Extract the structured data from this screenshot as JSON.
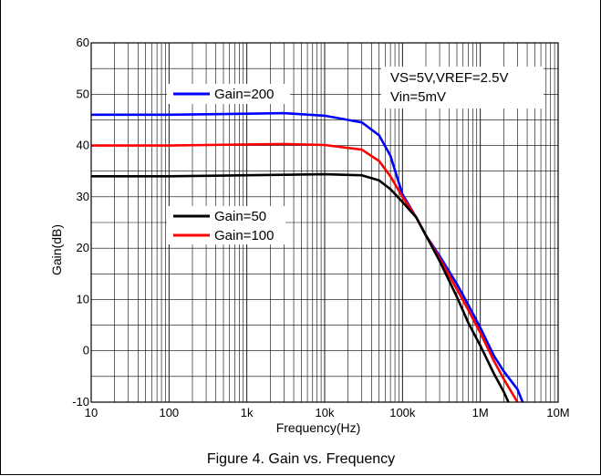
{
  "caption": "Figure 4. Gain vs. Frequency",
  "annotation": [
    "VS=5V,VREF=2.5V",
    "Vin=5mV"
  ],
  "chart_data": {
    "type": "line",
    "xscale": "log",
    "xlabel": "Frequency(Hz)",
    "ylabel": "Gain(dB)",
    "xlim": [
      10,
      10000000
    ],
    "ylim": [
      -10,
      60
    ],
    "xticks": [
      {
        "v": 10,
        "label": "10"
      },
      {
        "v": 100,
        "label": "100"
      },
      {
        "v": 1000,
        "label": "1k"
      },
      {
        "v": 10000,
        "label": "10k"
      },
      {
        "v": 100000,
        "label": "100k"
      },
      {
        "v": 1000000,
        "label": "1M"
      },
      {
        "v": 10000000,
        "label": "10M"
      }
    ],
    "yticks": [
      -10,
      0,
      10,
      20,
      30,
      40,
      50,
      60
    ],
    "grid": true,
    "series": [
      {
        "name": "Gain=200",
        "color": "#0000ff",
        "points": [
          [
            10,
            46
          ],
          [
            100,
            46
          ],
          [
            1000,
            46.2
          ],
          [
            3000,
            46.3
          ],
          [
            10000,
            45.8
          ],
          [
            30000,
            44.5
          ],
          [
            50000,
            42
          ],
          [
            70000,
            38
          ],
          [
            100000,
            30.5
          ],
          [
            150000,
            26
          ],
          [
            200000,
            22.5
          ],
          [
            300000,
            18.5
          ],
          [
            500000,
            13
          ],
          [
            700000,
            9
          ],
          [
            1000000,
            4.5
          ],
          [
            1500000,
            -1
          ],
          [
            2000000,
            -4
          ],
          [
            3000000,
            -7.5
          ],
          [
            3500000,
            -10
          ]
        ]
      },
      {
        "name": "Gain=100",
        "color": "#ff0000",
        "points": [
          [
            10,
            40
          ],
          [
            100,
            40
          ],
          [
            1000,
            40.2
          ],
          [
            3000,
            40.3
          ],
          [
            10000,
            40.1
          ],
          [
            30000,
            39.2
          ],
          [
            50000,
            37
          ],
          [
            70000,
            34
          ],
          [
            100000,
            30
          ],
          [
            150000,
            26
          ],
          [
            200000,
            22.5
          ],
          [
            300000,
            18
          ],
          [
            500000,
            12
          ],
          [
            700000,
            8
          ],
          [
            1000000,
            3.5
          ],
          [
            1500000,
            -2
          ],
          [
            2000000,
            -5.5
          ],
          [
            3000000,
            -10
          ]
        ]
      },
      {
        "name": "Gain=50",
        "color": "#000000",
        "points": [
          [
            10,
            34
          ],
          [
            100,
            34
          ],
          [
            1000,
            34.2
          ],
          [
            3000,
            34.3
          ],
          [
            10000,
            34.4
          ],
          [
            30000,
            34.2
          ],
          [
            50000,
            33.2
          ],
          [
            70000,
            31.5
          ],
          [
            100000,
            29
          ],
          [
            150000,
            26
          ],
          [
            200000,
            22.5
          ],
          [
            300000,
            17.5
          ],
          [
            500000,
            10.5
          ],
          [
            700000,
            5.5
          ],
          [
            1000000,
            1
          ],
          [
            1500000,
            -4.5
          ],
          [
            2000000,
            -8
          ],
          [
            2300000,
            -10
          ]
        ]
      }
    ],
    "legends": [
      {
        "entries": [
          "Gain=200"
        ],
        "placement": "top-left"
      },
      {
        "entries": [
          "Gain=50",
          "Gain=100"
        ],
        "placement": "middle-left"
      }
    ]
  }
}
